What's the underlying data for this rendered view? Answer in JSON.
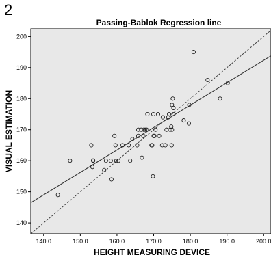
{
  "panel_label": "2",
  "chart_data": {
    "type": "scatter",
    "title": "Passing-Bablok Regression line",
    "xlabel": "HEIGHT MEASURING DEVICE",
    "ylabel": "VISUAL ESTIMATION",
    "xlim": [
      136.5,
      202
    ],
    "ylim": [
      136.5,
      202.5
    ],
    "xticks": [
      140.0,
      150.0,
      160.0,
      170.0,
      180.0,
      190.0,
      200.0
    ],
    "xtick_labels": [
      "140.0",
      "150.0",
      "160.0",
      "170.0",
      "180.0",
      "190.0",
      "200.0"
    ],
    "yticks": [
      140,
      150,
      160,
      170,
      180,
      190,
      200
    ],
    "ytick_labels": [
      "140",
      "150",
      "160",
      "170",
      "180",
      "190",
      "200"
    ],
    "grid": false,
    "background": "#e8e8e8",
    "points": [
      {
        "x": 143.9,
        "y": 149.0
      },
      {
        "x": 147.2,
        "y": 160.0
      },
      {
        "x": 153.0,
        "y": 165.0
      },
      {
        "x": 153.3,
        "y": 158.0
      },
      {
        "x": 153.5,
        "y": 160.0
      },
      {
        "x": 153.5,
        "y": 160.1
      },
      {
        "x": 156.5,
        "y": 157.0
      },
      {
        "x": 157.0,
        "y": 160.0
      },
      {
        "x": 158.3,
        "y": 160.0
      },
      {
        "x": 158.5,
        "y": 154.0
      },
      {
        "x": 159.3,
        "y": 168.0
      },
      {
        "x": 159.6,
        "y": 165.0
      },
      {
        "x": 159.8,
        "y": 160.0
      },
      {
        "x": 160.4,
        "y": 160.0
      },
      {
        "x": 161.5,
        "y": 165.0
      },
      {
        "x": 163.2,
        "y": 165.0
      },
      {
        "x": 163.6,
        "y": 160.0
      },
      {
        "x": 164.2,
        "y": 167.0
      },
      {
        "x": 165.5,
        "y": 165.0
      },
      {
        "x": 165.8,
        "y": 168.0
      },
      {
        "x": 165.8,
        "y": 170.0
      },
      {
        "x": 166.6,
        "y": 170.0
      },
      {
        "x": 166.8,
        "y": 161.0
      },
      {
        "x": 167.2,
        "y": 168.0
      },
      {
        "x": 167.3,
        "y": 170.0
      },
      {
        "x": 167.7,
        "y": 170.0
      },
      {
        "x": 168.1,
        "y": 170.0
      },
      {
        "x": 168.3,
        "y": 175.0
      },
      {
        "x": 169.4,
        "y": 165.0
      },
      {
        "x": 169.6,
        "y": 165.0
      },
      {
        "x": 169.8,
        "y": 155.0
      },
      {
        "x": 169.9,
        "y": 175.0
      },
      {
        "x": 170.0,
        "y": 168.0
      },
      {
        "x": 170.2,
        "y": 168.0
      },
      {
        "x": 170.5,
        "y": 170.0
      },
      {
        "x": 171.2,
        "y": 175.0
      },
      {
        "x": 171.5,
        "y": 168.0
      },
      {
        "x": 172.3,
        "y": 165.0
      },
      {
        "x": 172.5,
        "y": 174.0
      },
      {
        "x": 173.2,
        "y": 165.0
      },
      {
        "x": 173.5,
        "y": 170.0
      },
      {
        "x": 174.0,
        "y": 174.0
      },
      {
        "x": 174.2,
        "y": 175.0
      },
      {
        "x": 174.5,
        "y": 170.0
      },
      {
        "x": 174.8,
        "y": 171.0
      },
      {
        "x": 174.9,
        "y": 165.0
      },
      {
        "x": 175.0,
        "y": 170.0
      },
      {
        "x": 175.0,
        "y": 178.0
      },
      {
        "x": 175.2,
        "y": 180.0
      },
      {
        "x": 175.4,
        "y": 175.0
      },
      {
        "x": 175.4,
        "y": 177.0
      },
      {
        "x": 178.2,
        "y": 173.0
      },
      {
        "x": 179.6,
        "y": 172.0
      },
      {
        "x": 179.7,
        "y": 178.0
      },
      {
        "x": 180.9,
        "y": 195.0
      },
      {
        "x": 184.7,
        "y": 186.0
      },
      {
        "x": 188.1,
        "y": 180.0
      },
      {
        "x": 190.2,
        "y": 185.0
      }
    ],
    "lines": [
      {
        "style": "solid",
        "x": [
          136.5,
          202
        ],
        "y": [
          146.5,
          193.8
        ]
      },
      {
        "style": "dashed",
        "x": [
          136.5,
          202
        ],
        "y": [
          136.5,
          202
        ]
      }
    ]
  }
}
